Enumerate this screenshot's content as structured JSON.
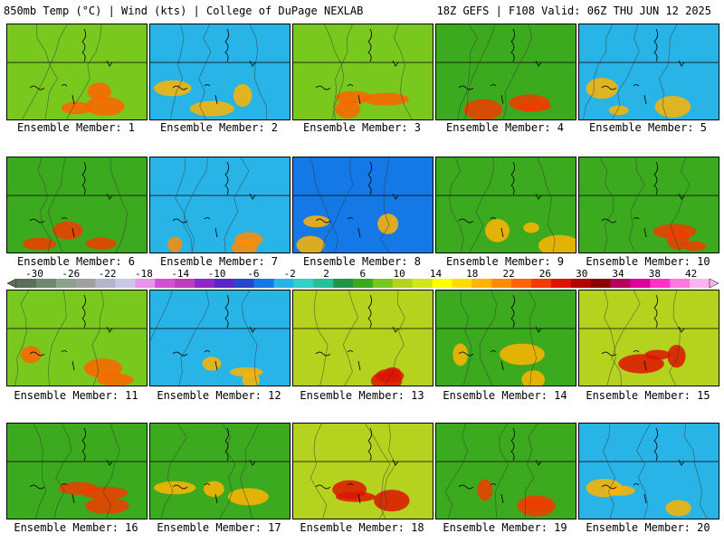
{
  "header": {
    "left_title": "850mb Temp (°C) | Wind (kts) | College of DuPage NEXLAB",
    "right_title": "18Z GEFS | F108 Valid: 06Z THU JUN 12 2025"
  },
  "members": [
    {
      "label": "Ensemble Member: 1",
      "style": "warm-left"
    },
    {
      "label": "Ensemble Member: 2",
      "style": "cool-top"
    },
    {
      "label": "Ensemble Member: 3",
      "style": "warm-left"
    },
    {
      "label": "Ensemble Member: 4",
      "style": "warm-south"
    },
    {
      "label": "Ensemble Member: 5",
      "style": "cool-top"
    },
    {
      "label": "Ensemble Member: 6",
      "style": "warm-south"
    },
    {
      "label": "Ensemble Member: 7",
      "style": "cool-corner"
    },
    {
      "label": "Ensemble Member: 8",
      "style": "cool-band"
    },
    {
      "label": "Ensemble Member: 9",
      "style": "mild"
    },
    {
      "label": "Ensemble Member: 10",
      "style": "warm-south"
    },
    {
      "label": "Ensemble Member: 11",
      "style": "warm-left"
    },
    {
      "label": "Ensemble Member: 12",
      "style": "cool-top"
    },
    {
      "label": "Ensemble Member: 13",
      "style": "hot"
    },
    {
      "label": "Ensemble Member: 14",
      "style": "mild"
    },
    {
      "label": "Ensemble Member: 15",
      "style": "hot"
    },
    {
      "label": "Ensemble Member: 16",
      "style": "warm-south"
    },
    {
      "label": "Ensemble Member: 17",
      "style": "mild"
    },
    {
      "label": "Ensemble Member: 18",
      "style": "hot"
    },
    {
      "label": "Ensemble Member: 19",
      "style": "warm-south"
    },
    {
      "label": "Ensemble Member: 20",
      "style": "cool-top"
    }
  ],
  "colorbar": {
    "labels": [
      "-30",
      "-26",
      "-22",
      "-18",
      "-14",
      "-10",
      "-6",
      "-2",
      "2",
      "6",
      "10",
      "14",
      "18",
      "22",
      "26",
      "30",
      "34",
      "38",
      "42"
    ],
    "colors": [
      "#5a6e5a",
      "#6e8a6e",
      "#8ca08c",
      "#a0a0a0",
      "#b4b4c8",
      "#c8c8e6",
      "#e696e6",
      "#d250d2",
      "#be3cbe",
      "#8c28c8",
      "#5a28c8",
      "#2846c8",
      "#1478e6",
      "#28b4e6",
      "#32d2c8",
      "#28be96",
      "#1e9646",
      "#3caa1e",
      "#78c81e",
      "#b4d21e",
      "#d2e61e",
      "#ffff00",
      "#ffdc00",
      "#ffb400",
      "#ff8c00",
      "#ff6400",
      "#f03c00",
      "#dc1400",
      "#b40000",
      "#8c0000",
      "#b4005a",
      "#dc00a0",
      "#ff32c8",
      "#ff78dc",
      "#ffb4f0"
    ]
  }
}
